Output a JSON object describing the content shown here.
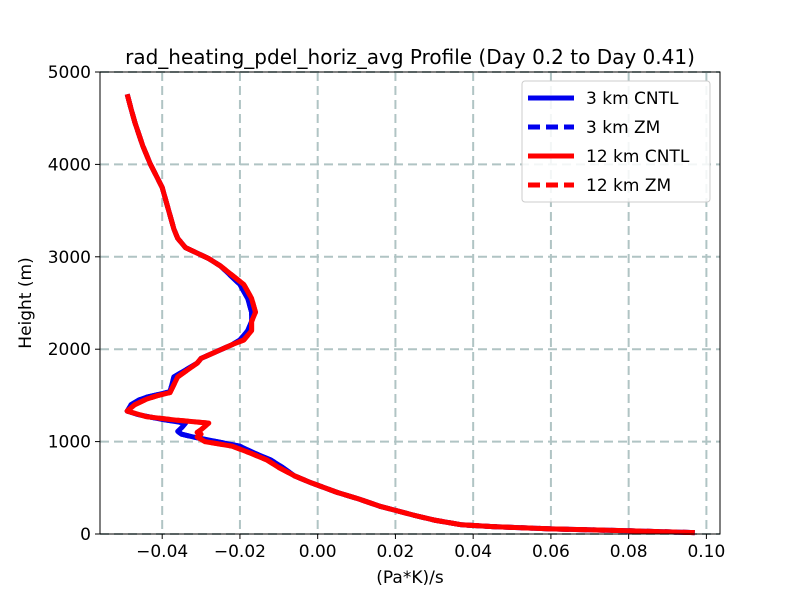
{
  "chart_data": {
    "type": "line",
    "title": "rad_heating_pdel_horiz_avg Profile (Day 0.2 to Day 0.41)",
    "xlabel": "(Pa*K)/s",
    "ylabel": "Height (m)",
    "xlim": [
      -0.056,
      0.1035
    ],
    "ylim": [
      0,
      5000
    ],
    "xticks": [
      -0.04,
      -0.02,
      0.0,
      0.02,
      0.04,
      0.06,
      0.08,
      0.1
    ],
    "xtick_labels": [
      "−0.04",
      "−0.02",
      "0.00",
      "0.02",
      "0.04",
      "0.06",
      "0.08",
      "0.10"
    ],
    "yticks": [
      0,
      1000,
      2000,
      3000,
      4000,
      5000
    ],
    "ytick_labels": [
      "0",
      "1000",
      "2000",
      "3000",
      "4000",
      "5000"
    ],
    "grid": true,
    "legend_position": "top-right",
    "series": [
      {
        "name": "3 km CNTL",
        "color": "#0000ee",
        "style": "solid",
        "points": [
          [
            0.097,
            15
          ],
          [
            0.08,
            35
          ],
          [
            0.06,
            55
          ],
          [
            0.045,
            80
          ],
          [
            0.037,
            100
          ],
          [
            0.03,
            150
          ],
          [
            0.025,
            200
          ],
          [
            0.016,
            300
          ],
          [
            0.0105,
            380
          ],
          [
            0.005,
            450
          ],
          [
            -0.002,
            560
          ],
          [
            -0.006,
            630
          ],
          [
            -0.009,
            720
          ],
          [
            -0.012,
            800
          ],
          [
            -0.016,
            870
          ],
          [
            -0.02,
            950
          ],
          [
            -0.026,
            1000
          ],
          [
            -0.032,
            1050
          ],
          [
            -0.033,
            1060
          ],
          [
            -0.035,
            1080
          ],
          [
            -0.036,
            1110
          ],
          [
            -0.035,
            1150
          ],
          [
            -0.034,
            1200
          ],
          [
            -0.04,
            1240
          ],
          [
            -0.046,
            1290
          ],
          [
            -0.049,
            1330
          ],
          [
            -0.048,
            1400
          ],
          [
            -0.046,
            1450
          ],
          [
            -0.044,
            1480
          ],
          [
            -0.04,
            1520
          ],
          [
            -0.038,
            1540
          ],
          [
            -0.037,
            1700
          ],
          [
            -0.031,
            1850
          ],
          [
            -0.03,
            1900
          ],
          [
            -0.022,
            2050
          ],
          [
            -0.02,
            2100
          ],
          [
            -0.018,
            2200
          ],
          [
            -0.017,
            2300
          ],
          [
            -0.017,
            2400
          ],
          [
            -0.018,
            2550
          ],
          [
            -0.02,
            2700
          ],
          [
            -0.025,
            2900
          ],
          [
            -0.028,
            2980
          ],
          [
            -0.034,
            3100
          ],
          [
            -0.036,
            3200
          ],
          [
            -0.037,
            3300
          ],
          [
            -0.039,
            3600
          ],
          [
            -0.04,
            3750
          ],
          [
            -0.043,
            4000
          ],
          [
            -0.045,
            4200
          ],
          [
            -0.047,
            4450
          ],
          [
            -0.048,
            4600
          ],
          [
            -0.049,
            4760
          ]
        ]
      },
      {
        "name": "3 km ZM",
        "color": "#0000ee",
        "style": "dashed",
        "points": [
          [
            0.097,
            15
          ],
          [
            0.08,
            35
          ],
          [
            0.06,
            55
          ],
          [
            0.045,
            80
          ],
          [
            0.037,
            100
          ],
          [
            0.03,
            150
          ],
          [
            0.025,
            200
          ],
          [
            0.016,
            300
          ],
          [
            0.0105,
            380
          ],
          [
            0.005,
            450
          ],
          [
            -0.002,
            560
          ],
          [
            -0.006,
            630
          ],
          [
            -0.009,
            720
          ],
          [
            -0.012,
            800
          ],
          [
            -0.016,
            870
          ],
          [
            -0.02,
            950
          ],
          [
            -0.026,
            1000
          ],
          [
            -0.032,
            1050
          ],
          [
            -0.033,
            1060
          ],
          [
            -0.035,
            1080
          ],
          [
            -0.036,
            1110
          ],
          [
            -0.035,
            1150
          ],
          [
            -0.034,
            1200
          ],
          [
            -0.04,
            1240
          ],
          [
            -0.046,
            1290
          ],
          [
            -0.049,
            1330
          ],
          [
            -0.048,
            1400
          ],
          [
            -0.046,
            1450
          ],
          [
            -0.044,
            1480
          ],
          [
            -0.04,
            1520
          ],
          [
            -0.038,
            1540
          ],
          [
            -0.037,
            1700
          ],
          [
            -0.031,
            1850
          ],
          [
            -0.03,
            1900
          ],
          [
            -0.022,
            2050
          ],
          [
            -0.02,
            2100
          ],
          [
            -0.018,
            2200
          ],
          [
            -0.017,
            2300
          ],
          [
            -0.017,
            2400
          ],
          [
            -0.018,
            2550
          ],
          [
            -0.02,
            2700
          ],
          [
            -0.025,
            2900
          ],
          [
            -0.028,
            2980
          ],
          [
            -0.034,
            3100
          ],
          [
            -0.036,
            3200
          ],
          [
            -0.037,
            3300
          ],
          [
            -0.039,
            3600
          ],
          [
            -0.04,
            3750
          ],
          [
            -0.043,
            4000
          ],
          [
            -0.045,
            4200
          ],
          [
            -0.047,
            4450
          ],
          [
            -0.048,
            4600
          ],
          [
            -0.049,
            4760
          ]
        ]
      },
      {
        "name": "12 km CNTL",
        "color": "#ff0000",
        "style": "solid",
        "points": [
          [
            0.097,
            15
          ],
          [
            0.08,
            35
          ],
          [
            0.06,
            55
          ],
          [
            0.045,
            80
          ],
          [
            0.037,
            100
          ],
          [
            0.03,
            150
          ],
          [
            0.025,
            200
          ],
          [
            0.016,
            300
          ],
          [
            0.0105,
            380
          ],
          [
            0.005,
            450
          ],
          [
            -0.002,
            560
          ],
          [
            -0.006,
            630
          ],
          [
            -0.01,
            720
          ],
          [
            -0.013,
            800
          ],
          [
            -0.017,
            870
          ],
          [
            -0.022,
            950
          ],
          [
            -0.029,
            1000
          ],
          [
            -0.031,
            1050
          ],
          [
            -0.03,
            1080
          ],
          [
            -0.031,
            1100
          ],
          [
            -0.03,
            1130
          ],
          [
            -0.028,
            1200
          ],
          [
            -0.036,
            1230
          ],
          [
            -0.044,
            1270
          ],
          [
            -0.049,
            1330
          ],
          [
            -0.047,
            1400
          ],
          [
            -0.044,
            1460
          ],
          [
            -0.041,
            1500
          ],
          [
            -0.038,
            1530
          ],
          [
            -0.036,
            1700
          ],
          [
            -0.031,
            1850
          ],
          [
            -0.03,
            1900
          ],
          [
            -0.022,
            2050
          ],
          [
            -0.019,
            2100
          ],
          [
            -0.017,
            2200
          ],
          [
            -0.017,
            2300
          ],
          [
            -0.016,
            2400
          ],
          [
            -0.017,
            2550
          ],
          [
            -0.019,
            2700
          ],
          [
            -0.025,
            2900
          ],
          [
            -0.028,
            2980
          ],
          [
            -0.034,
            3100
          ],
          [
            -0.036,
            3200
          ],
          [
            -0.037,
            3300
          ],
          [
            -0.039,
            3600
          ],
          [
            -0.04,
            3750
          ],
          [
            -0.043,
            4000
          ],
          [
            -0.045,
            4200
          ],
          [
            -0.047,
            4450
          ],
          [
            -0.048,
            4600
          ],
          [
            -0.049,
            4760
          ]
        ]
      },
      {
        "name": "12 km ZM",
        "color": "#ff0000",
        "style": "dashed",
        "points": [
          [
            0.097,
            15
          ],
          [
            0.08,
            35
          ],
          [
            0.06,
            55
          ],
          [
            0.045,
            80
          ],
          [
            0.037,
            100
          ],
          [
            0.03,
            150
          ],
          [
            0.025,
            200
          ],
          [
            0.016,
            300
          ],
          [
            0.0105,
            380
          ],
          [
            0.005,
            450
          ],
          [
            -0.002,
            560
          ],
          [
            -0.006,
            630
          ],
          [
            -0.01,
            720
          ],
          [
            -0.013,
            800
          ],
          [
            -0.017,
            870
          ],
          [
            -0.022,
            950
          ],
          [
            -0.029,
            1000
          ],
          [
            -0.031,
            1050
          ],
          [
            -0.03,
            1080
          ],
          [
            -0.031,
            1100
          ],
          [
            -0.03,
            1130
          ],
          [
            -0.028,
            1200
          ],
          [
            -0.036,
            1230
          ],
          [
            -0.044,
            1270
          ],
          [
            -0.049,
            1330
          ],
          [
            -0.047,
            1400
          ],
          [
            -0.044,
            1460
          ],
          [
            -0.041,
            1500
          ],
          [
            -0.038,
            1530
          ],
          [
            -0.036,
            1700
          ],
          [
            -0.031,
            1850
          ],
          [
            -0.03,
            1900
          ],
          [
            -0.022,
            2050
          ],
          [
            -0.019,
            2100
          ],
          [
            -0.017,
            2200
          ],
          [
            -0.017,
            2300
          ],
          [
            -0.016,
            2400
          ],
          [
            -0.017,
            2550
          ],
          [
            -0.019,
            2700
          ],
          [
            -0.025,
            2900
          ],
          [
            -0.028,
            2980
          ],
          [
            -0.034,
            3100
          ],
          [
            -0.036,
            3200
          ],
          [
            -0.037,
            3300
          ],
          [
            -0.039,
            3600
          ],
          [
            -0.04,
            3750
          ],
          [
            -0.043,
            4000
          ],
          [
            -0.045,
            4200
          ],
          [
            -0.047,
            4450
          ],
          [
            -0.048,
            4600
          ],
          [
            -0.049,
            4760
          ]
        ]
      }
    ]
  }
}
